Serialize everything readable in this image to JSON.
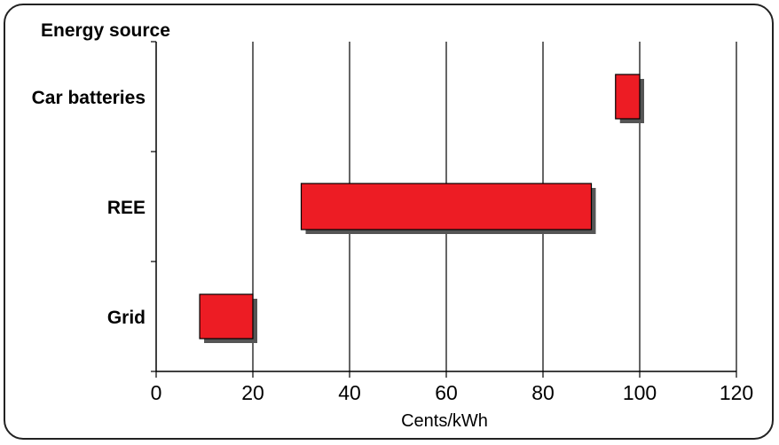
{
  "chart_data": {
    "type": "bar",
    "orientation": "horizontal-range",
    "y_axis_title": "Energy source",
    "xlabel": "Cents/kWh",
    "xlim": [
      0,
      120
    ],
    "xticks": [
      "0",
      "20",
      "40",
      "60",
      "80",
      "100",
      "120"
    ],
    "grid": "vertical",
    "categories": [
      "Car batteries",
      "REE",
      "Grid"
    ],
    "ranges": [
      {
        "category": "Car batteries",
        "start": 95,
        "end": 100
      },
      {
        "category": "REE",
        "start": 30,
        "end": 90
      },
      {
        "category": "Grid",
        "start": 9,
        "end": 20
      }
    ],
    "bar_color": "#ed1c24",
    "shadow_color": "#555555"
  }
}
